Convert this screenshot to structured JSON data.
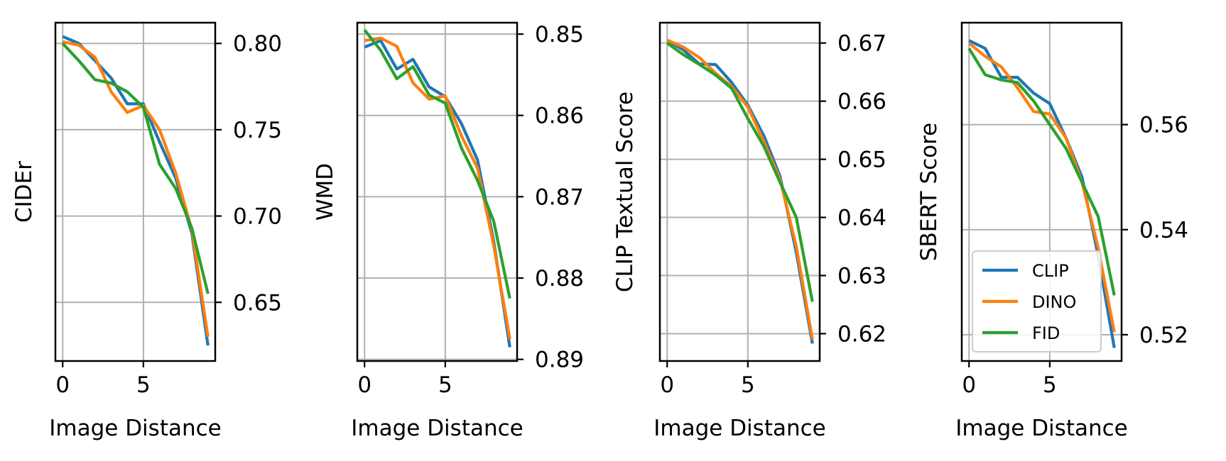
{
  "colors": {
    "CLIP": "#1f77b4",
    "DINO": "#ff7f0e",
    "FID": "#2ca02c"
  },
  "chart_data": [
    {
      "type": "line",
      "xlabel": "Image Distance",
      "ylabel": "CIDEr",
      "xlim": [
        -0.45,
        9.45
      ],
      "ylim": [
        0.616,
        0.812
      ],
      "y_reversed": false,
      "y_axis_side": "right",
      "xticks": [
        0,
        5
      ],
      "yticks": [
        0.65,
        0.7,
        0.75,
        0.8
      ],
      "ytick_labels": [
        "0.65",
        "0.70",
        "0.75",
        "0.80"
      ],
      "grid": true,
      "x": [
        0,
        1,
        2,
        3,
        4,
        5,
        6,
        7,
        8,
        9
      ],
      "series": [
        {
          "name": "CLIP",
          "values": [
            0.804,
            0.8,
            0.79,
            0.78,
            0.765,
            0.765,
            0.743,
            0.722,
            0.69,
            0.625
          ]
        },
        {
          "name": "DINO",
          "values": [
            0.801,
            0.799,
            0.792,
            0.772,
            0.76,
            0.764,
            0.75,
            0.725,
            0.692,
            0.63
          ]
        },
        {
          "name": "FID",
          "values": [
            0.8,
            0.79,
            0.779,
            0.777,
            0.772,
            0.763,
            0.73,
            0.716,
            0.693,
            0.655
          ]
        }
      ]
    },
    {
      "type": "line",
      "xlabel": "Image Distance",
      "ylabel": "WMD",
      "xlim": [
        -0.45,
        9.45
      ],
      "ylim": [
        0.8486,
        0.8902
      ],
      "y_reversed": true,
      "y_axis_side": "right",
      "xticks": [
        0,
        5
      ],
      "yticks": [
        0.85,
        0.86,
        0.87,
        0.88,
        0.89
      ],
      "ytick_labels": [
        "0.85",
        "0.86",
        "0.87",
        "0.88",
        "0.89"
      ],
      "grid": true,
      "x": [
        0,
        1,
        2,
        3,
        4,
        5,
        6,
        7,
        8,
        9
      ],
      "series": [
        {
          "name": "CLIP",
          "values": [
            0.8516,
            0.8508,
            0.8543,
            0.8531,
            0.8565,
            0.8577,
            0.861,
            0.8655,
            0.8755,
            0.8885
          ]
        },
        {
          "name": "DINO",
          "values": [
            0.8508,
            0.8505,
            0.8515,
            0.856,
            0.858,
            0.8576,
            0.8625,
            0.8665,
            0.876,
            0.8875
          ]
        },
        {
          "name": "FID",
          "values": [
            0.8495,
            0.852,
            0.8555,
            0.854,
            0.8575,
            0.8585,
            0.864,
            0.868,
            0.873,
            0.8825
          ]
        }
      ]
    },
    {
      "type": "line",
      "xlabel": "Image Distance",
      "ylabel": "CLIP Textual Score",
      "xlim": [
        -0.45,
        9.45
      ],
      "ylim": [
        0.6153,
        0.6735
      ],
      "y_reversed": false,
      "y_axis_side": "right",
      "xticks": [
        0,
        5
      ],
      "yticks": [
        0.62,
        0.63,
        0.64,
        0.65,
        0.66,
        0.67
      ],
      "ytick_labels": [
        "0.62",
        "0.63",
        "0.64",
        "0.65",
        "0.66",
        "0.67"
      ],
      "grid": true,
      "x": [
        0,
        1,
        2,
        3,
        4,
        5,
        6,
        7,
        8,
        9
      ],
      "series": [
        {
          "name": "CLIP",
          "values": [
            0.6705,
            0.6688,
            0.6664,
            0.6663,
            0.6632,
            0.6593,
            0.654,
            0.647,
            0.634,
            0.6183
          ]
        },
        {
          "name": "DINO",
          "values": [
            0.6705,
            0.6693,
            0.6675,
            0.6648,
            0.6625,
            0.659,
            0.653,
            0.6465,
            0.635,
            0.619
          ]
        },
        {
          "name": "FID",
          "values": [
            0.67,
            0.668,
            0.6663,
            0.6645,
            0.6622,
            0.657,
            0.6522,
            0.646,
            0.64,
            0.6255
          ]
        }
      ]
    },
    {
      "type": "line",
      "xlabel": "Image Distance",
      "ylabel": "SBERT Score",
      "xlim": [
        -0.45,
        9.45
      ],
      "ylim": [
        0.515,
        0.5794
      ],
      "y_reversed": false,
      "y_axis_side": "right",
      "xticks": [
        0,
        5
      ],
      "yticks": [
        0.52,
        0.54,
        0.56
      ],
      "ytick_labels": [
        "0.52",
        "0.54",
        "0.56"
      ],
      "grid": true,
      "legend": {
        "entries": [
          "CLIP",
          "DINO",
          "FID"
        ],
        "position": "lower-right"
      },
      "x": [
        0,
        1,
        2,
        3,
        4,
        5,
        6,
        7,
        8,
        9
      ],
      "series": [
        {
          "name": "CLIP",
          "values": [
            0.576,
            0.5745,
            0.569,
            0.569,
            0.566,
            0.564,
            0.5575,
            0.55,
            0.535,
            0.5175
          ]
        },
        {
          "name": "DINO",
          "values": [
            0.5755,
            0.573,
            0.571,
            0.567,
            0.5625,
            0.562,
            0.5575,
            0.549,
            0.5365,
            0.5205
          ]
        },
        {
          "name": "FID",
          "values": [
            0.5745,
            0.5695,
            0.5685,
            0.568,
            0.5645,
            0.56,
            0.5555,
            0.549,
            0.5425,
            0.5275
          ]
        }
      ]
    }
  ]
}
